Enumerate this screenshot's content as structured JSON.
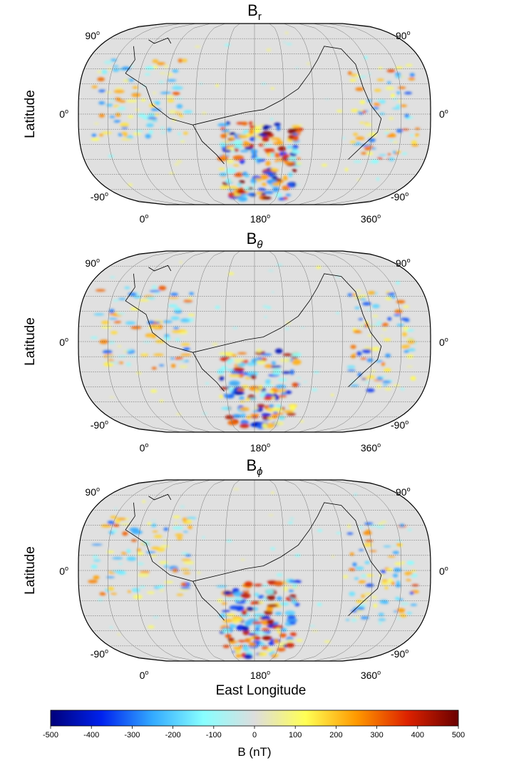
{
  "panels": [
    {
      "id": "br",
      "title_main": "B",
      "title_sub": "r",
      "lat_top_left": "90",
      "lat_top_right": "90",
      "lat_mid_left": "0",
      "lat_mid_right": "0",
      "lat_bot_left": "-90",
      "lat_bot_right": "-90",
      "lon_left": "0",
      "lon_mid": "180",
      "lon_right": "360",
      "ylabel": "Latitude"
    },
    {
      "id": "btheta",
      "title_main": "B",
      "title_sub": "θ",
      "lat_top_left": "90",
      "lat_top_right": "90",
      "lat_mid_left": "0",
      "lat_mid_right": "0",
      "lat_bot_left": "-90",
      "lat_bot_right": "-90",
      "lon_left": "0",
      "lon_mid": "180",
      "lon_right": "360",
      "ylabel": "Latitude"
    },
    {
      "id": "bphi",
      "title_main": "B",
      "title_sub": "ϕ",
      "lat_top_left": "90",
      "lat_top_right": "90",
      "lat_mid_left": "0",
      "lat_mid_right": "0",
      "lat_bot_left": "-90",
      "lat_bot_right": "-90",
      "lon_left": "0",
      "lon_mid": "180",
      "lon_right": "360",
      "ylabel": "Latitude"
    }
  ],
  "degree_symbol": "o",
  "xlabel": "East Longitude",
  "colorbar": {
    "label": "B (nT)",
    "ticks": [
      "-500",
      "-400",
      "-300",
      "-200",
      "-100",
      "0",
      "100",
      "200",
      "300",
      "400",
      "500"
    ],
    "range": [
      -500,
      500
    ],
    "colors": [
      "#00007a",
      "#0022ee",
      "#33aaff",
      "#88ffff",
      "#dddddd",
      "#ffff55",
      "#ff9900",
      "#dd2200",
      "#6a0000"
    ]
  }
}
